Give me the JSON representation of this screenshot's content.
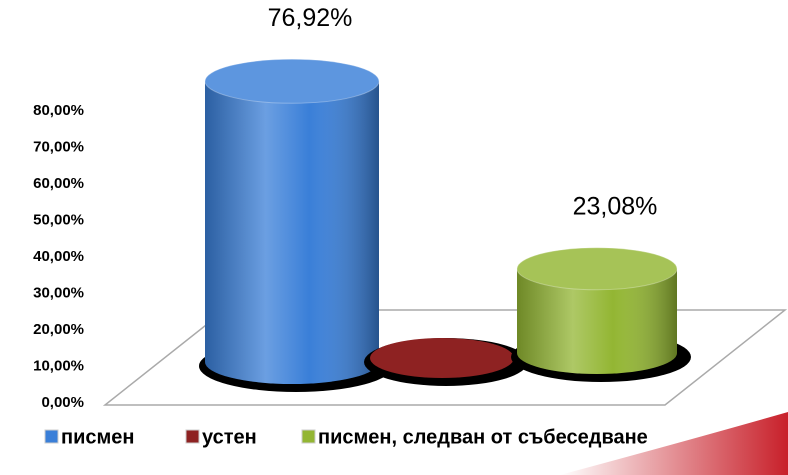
{
  "chart_data": {
    "type": "bar3d",
    "series": [
      {
        "name": "писмен",
        "color": "#3a7fd8",
        "values": [
          76.92
        ],
        "value_labels": [
          "76,92%"
        ]
      },
      {
        "name": "устен",
        "color": "#8e2222",
        "values": [
          0
        ]
      },
      {
        "name": "писмен, следван от събеседване",
        "color": "#93b633",
        "values": [
          23.08
        ],
        "value_labels": [
          "23,08%"
        ]
      }
    ],
    "ylim": [
      0,
      80
    ],
    "yticks": [
      {
        "value": 0,
        "label": "0,00%"
      },
      {
        "value": 10,
        "label": "10,00%"
      },
      {
        "value": 20,
        "label": "20,00%"
      },
      {
        "value": 30,
        "label": "30,00%"
      },
      {
        "value": 40,
        "label": "40,00%"
      },
      {
        "value": 50,
        "label": "50,00%"
      },
      {
        "value": 60,
        "label": "60,00%"
      },
      {
        "value": 70,
        "label": "70,00%"
      },
      {
        "value": 80,
        "label": "80,00%"
      }
    ],
    "legend": "bottom"
  }
}
